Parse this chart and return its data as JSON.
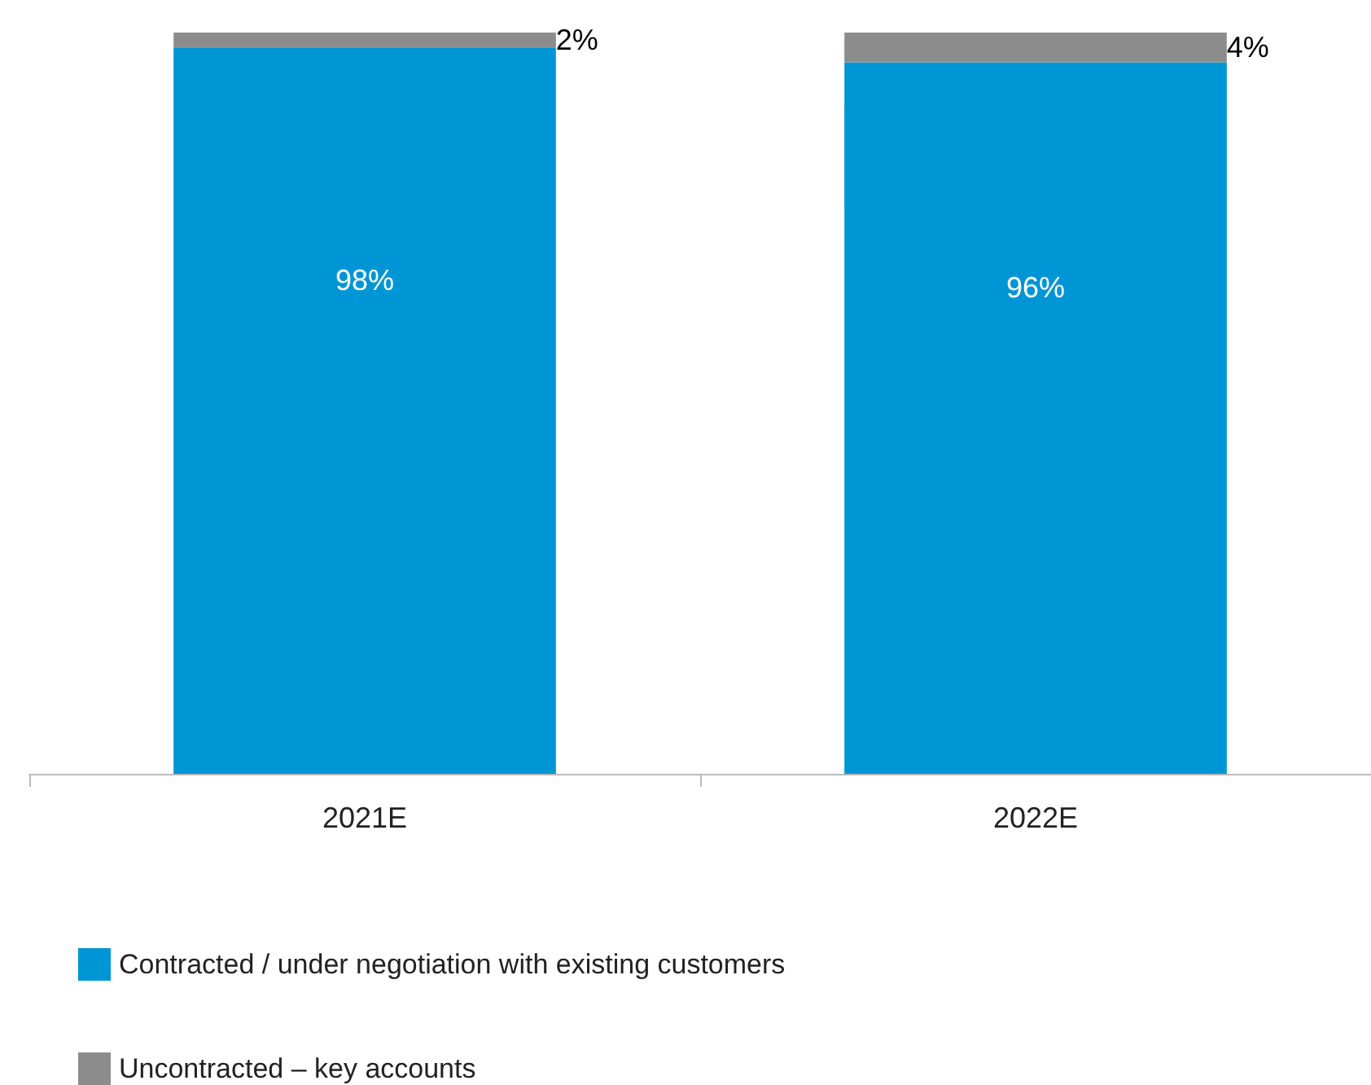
{
  "chart_data": {
    "type": "bar",
    "stacked": true,
    "categories": [
      "2021E",
      "2022E"
    ],
    "series": [
      {
        "name": "Contracted / under negotiation with existing customers",
        "color": "#0096d6",
        "values": [
          98,
          96
        ],
        "value_labels": [
          "98%",
          "96%"
        ]
      },
      {
        "name": "Uncontracted – key accounts",
        "color": "#8c8c8c",
        "values": [
          2,
          4
        ],
        "value_labels": [
          "2%",
          "4%"
        ]
      }
    ],
    "legend": "bottom left",
    "grid": false
  }
}
